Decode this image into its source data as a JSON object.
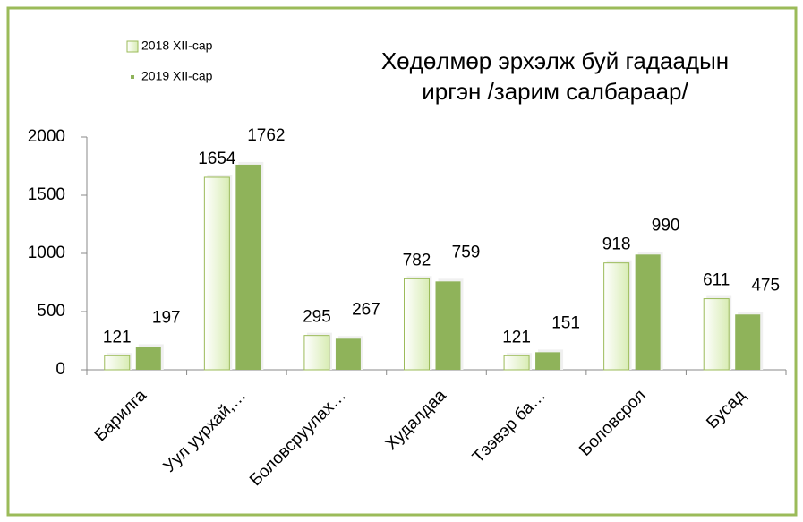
{
  "chart_data": {
    "type": "bar",
    "title": [
      "Хөдөлмөр эрхэлж буй гадаадын",
      "иргэн /зарим салбараар/"
    ],
    "categories": [
      "Барилга",
      "Уул уурхай,…",
      "Боловсруулах…",
      "Худалдаа",
      "Тээвэр ба…",
      "Боловсрол",
      "Бусад"
    ],
    "series": [
      {
        "name": "2018 XII-сар",
        "color": "#eef7dc",
        "values": [
          121,
          1654,
          295,
          782,
          121,
          918,
          611
        ]
      },
      {
        "name": "2019 XII-сар",
        "color": "#8fb35a",
        "values": [
          197,
          1762,
          267,
          759,
          151,
          990,
          475
        ]
      }
    ],
    "ylim": [
      0,
      2000
    ],
    "yticks": [
      0,
      500,
      1000,
      1500,
      2000
    ],
    "grid": false,
    "legend": "top-left"
  }
}
